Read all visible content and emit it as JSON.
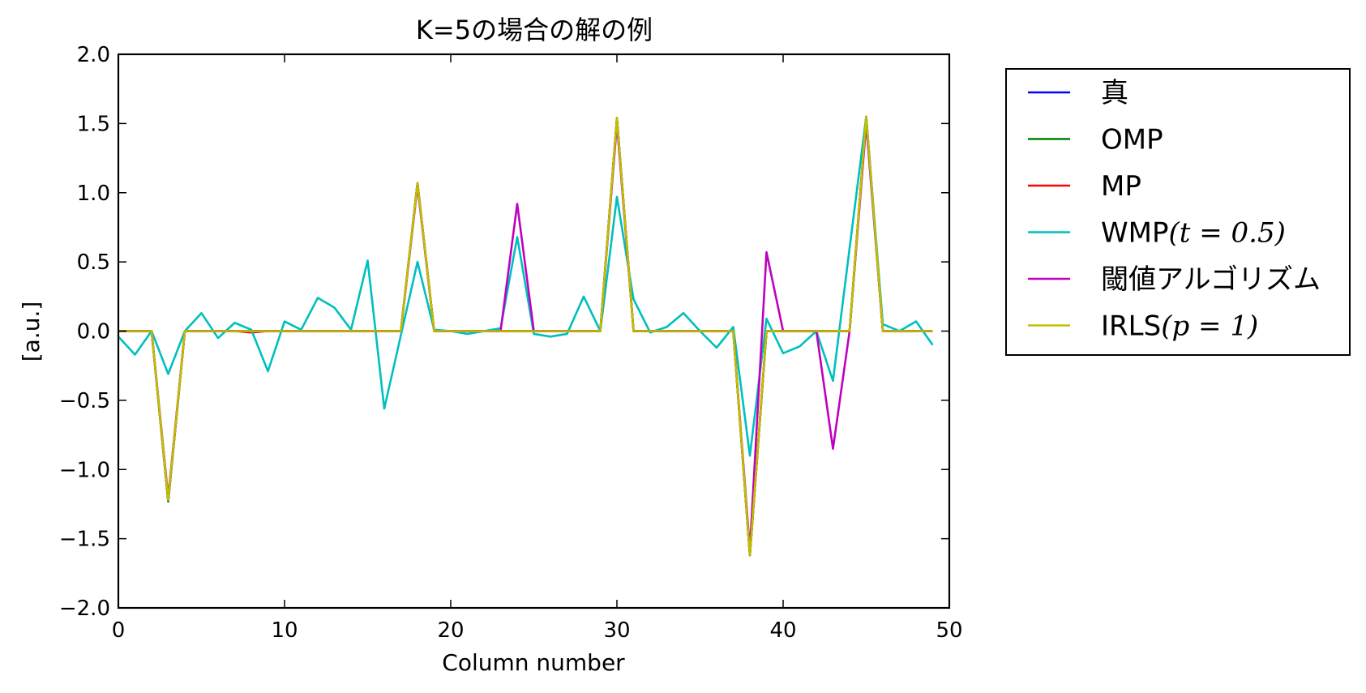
{
  "chart_data": {
    "type": "line",
    "title": "K=5の場合の解の例",
    "xlabel": "Column number",
    "ylabel": "[a.u.]",
    "xlim": [
      0,
      50
    ],
    "ylim": [
      -2.0,
      2.0
    ],
    "xticks": [
      "0",
      "10",
      "20",
      "30",
      "40",
      "50"
    ],
    "yticks": [
      "2.0",
      "1.5",
      "1.0",
      "0.5",
      "0.0",
      "−0.5",
      "−1.0",
      "−1.5",
      "−2.0"
    ],
    "grid": false,
    "legend_position": "outside-right",
    "x": [
      0,
      1,
      2,
      3,
      4,
      5,
      6,
      7,
      8,
      9,
      10,
      11,
      12,
      13,
      14,
      15,
      16,
      17,
      18,
      19,
      20,
      21,
      22,
      23,
      24,
      25,
      26,
      27,
      28,
      29,
      30,
      31,
      32,
      33,
      34,
      35,
      36,
      37,
      38,
      39,
      40,
      41,
      42,
      43,
      44,
      45,
      46,
      47,
      48,
      49
    ],
    "series": [
      {
        "name": "真",
        "color": "#0000ff",
        "values": [
          0,
          0,
          0,
          -1.23,
          0,
          0,
          0,
          0,
          0,
          0,
          0,
          0,
          0,
          0,
          0,
          0,
          0,
          0,
          1.07,
          0,
          0,
          0,
          0,
          0,
          0,
          0,
          0,
          0,
          0,
          0,
          1.54,
          0,
          0,
          0,
          0,
          0,
          0,
          0,
          -1.62,
          0,
          0,
          0,
          0,
          0,
          0,
          1.55,
          0,
          0,
          0,
          0
        ]
      },
      {
        "name": "OMP",
        "color": "#008000",
        "values": [
          0,
          0,
          0,
          -1.23,
          0,
          0,
          0,
          0,
          0,
          0,
          0,
          0,
          0,
          0,
          0,
          0,
          0,
          0,
          1.07,
          0,
          0,
          0,
          0,
          0,
          0,
          0,
          0,
          0,
          0,
          0,
          1.54,
          0,
          0,
          0,
          0,
          0,
          0,
          0,
          -1.62,
          0,
          0,
          0,
          0,
          0,
          0,
          1.55,
          0,
          0,
          0,
          0
        ]
      },
      {
        "name": "MP",
        "color": "#ff0000",
        "values": [
          0,
          0,
          0,
          -1.22,
          0,
          0,
          0,
          0,
          -0.01,
          0,
          0,
          0,
          0,
          0,
          0,
          0,
          0,
          0,
          1.07,
          0,
          0,
          0,
          0,
          0,
          0,
          0,
          0,
          0,
          0,
          0,
          1.54,
          0,
          0,
          0,
          0,
          0,
          0,
          0,
          -1.62,
          0,
          0,
          0,
          0,
          0,
          0,
          1.55,
          0,
          0,
          0,
          0
        ]
      },
      {
        "name": "WMP",
        "label_math": "(t = 0.5)",
        "color": "#00bfbf",
        "values": [
          -0.04,
          -0.17,
          0.0,
          -0.31,
          0.0,
          0.13,
          -0.05,
          0.06,
          0.01,
          -0.29,
          0.07,
          0.01,
          0.24,
          0.17,
          0.01,
          0.51,
          -0.56,
          -0.03,
          0.5,
          0.01,
          0.0,
          -0.02,
          0.0,
          0.02,
          0.68,
          -0.02,
          -0.04,
          -0.02,
          0.25,
          0.0,
          0.97,
          0.23,
          -0.01,
          0.03,
          0.13,
          0.0,
          -0.12,
          0.03,
          -0.9,
          0.09,
          -0.16,
          -0.11,
          0.0,
          -0.36,
          0.6,
          1.55,
          0.05,
          0.0,
          0.07,
          -0.1
        ]
      },
      {
        "name": "閾値アルゴリズム",
        "color": "#bf00bf",
        "values": [
          0,
          0,
          0,
          -1.2,
          0,
          0,
          0,
          0,
          0,
          0,
          0,
          0,
          0,
          0,
          0,
          0,
          0,
          0,
          1.05,
          0,
          0,
          0,
          0,
          0,
          0.92,
          0,
          0,
          0,
          0,
          0,
          1.5,
          0,
          0,
          0,
          0,
          0,
          0,
          0,
          -1.58,
          0.57,
          0,
          0,
          0,
          -0.85,
          0,
          1.5,
          0,
          0,
          0,
          0
        ]
      },
      {
        "name": "IRLS",
        "label_math": "(p = 1)",
        "color": "#bfbf00",
        "values": [
          0,
          0,
          0,
          -1.22,
          0,
          0,
          0,
          0,
          0,
          0,
          0,
          0,
          0,
          0,
          0,
          0,
          0,
          0,
          1.07,
          0,
          0,
          0,
          0,
          0,
          0,
          0,
          0,
          0,
          0,
          0,
          1.54,
          0,
          0,
          0,
          0,
          0,
          0,
          0,
          -1.62,
          0,
          0,
          0,
          0,
          0,
          0,
          1.55,
          0,
          0,
          0,
          0
        ]
      }
    ]
  }
}
